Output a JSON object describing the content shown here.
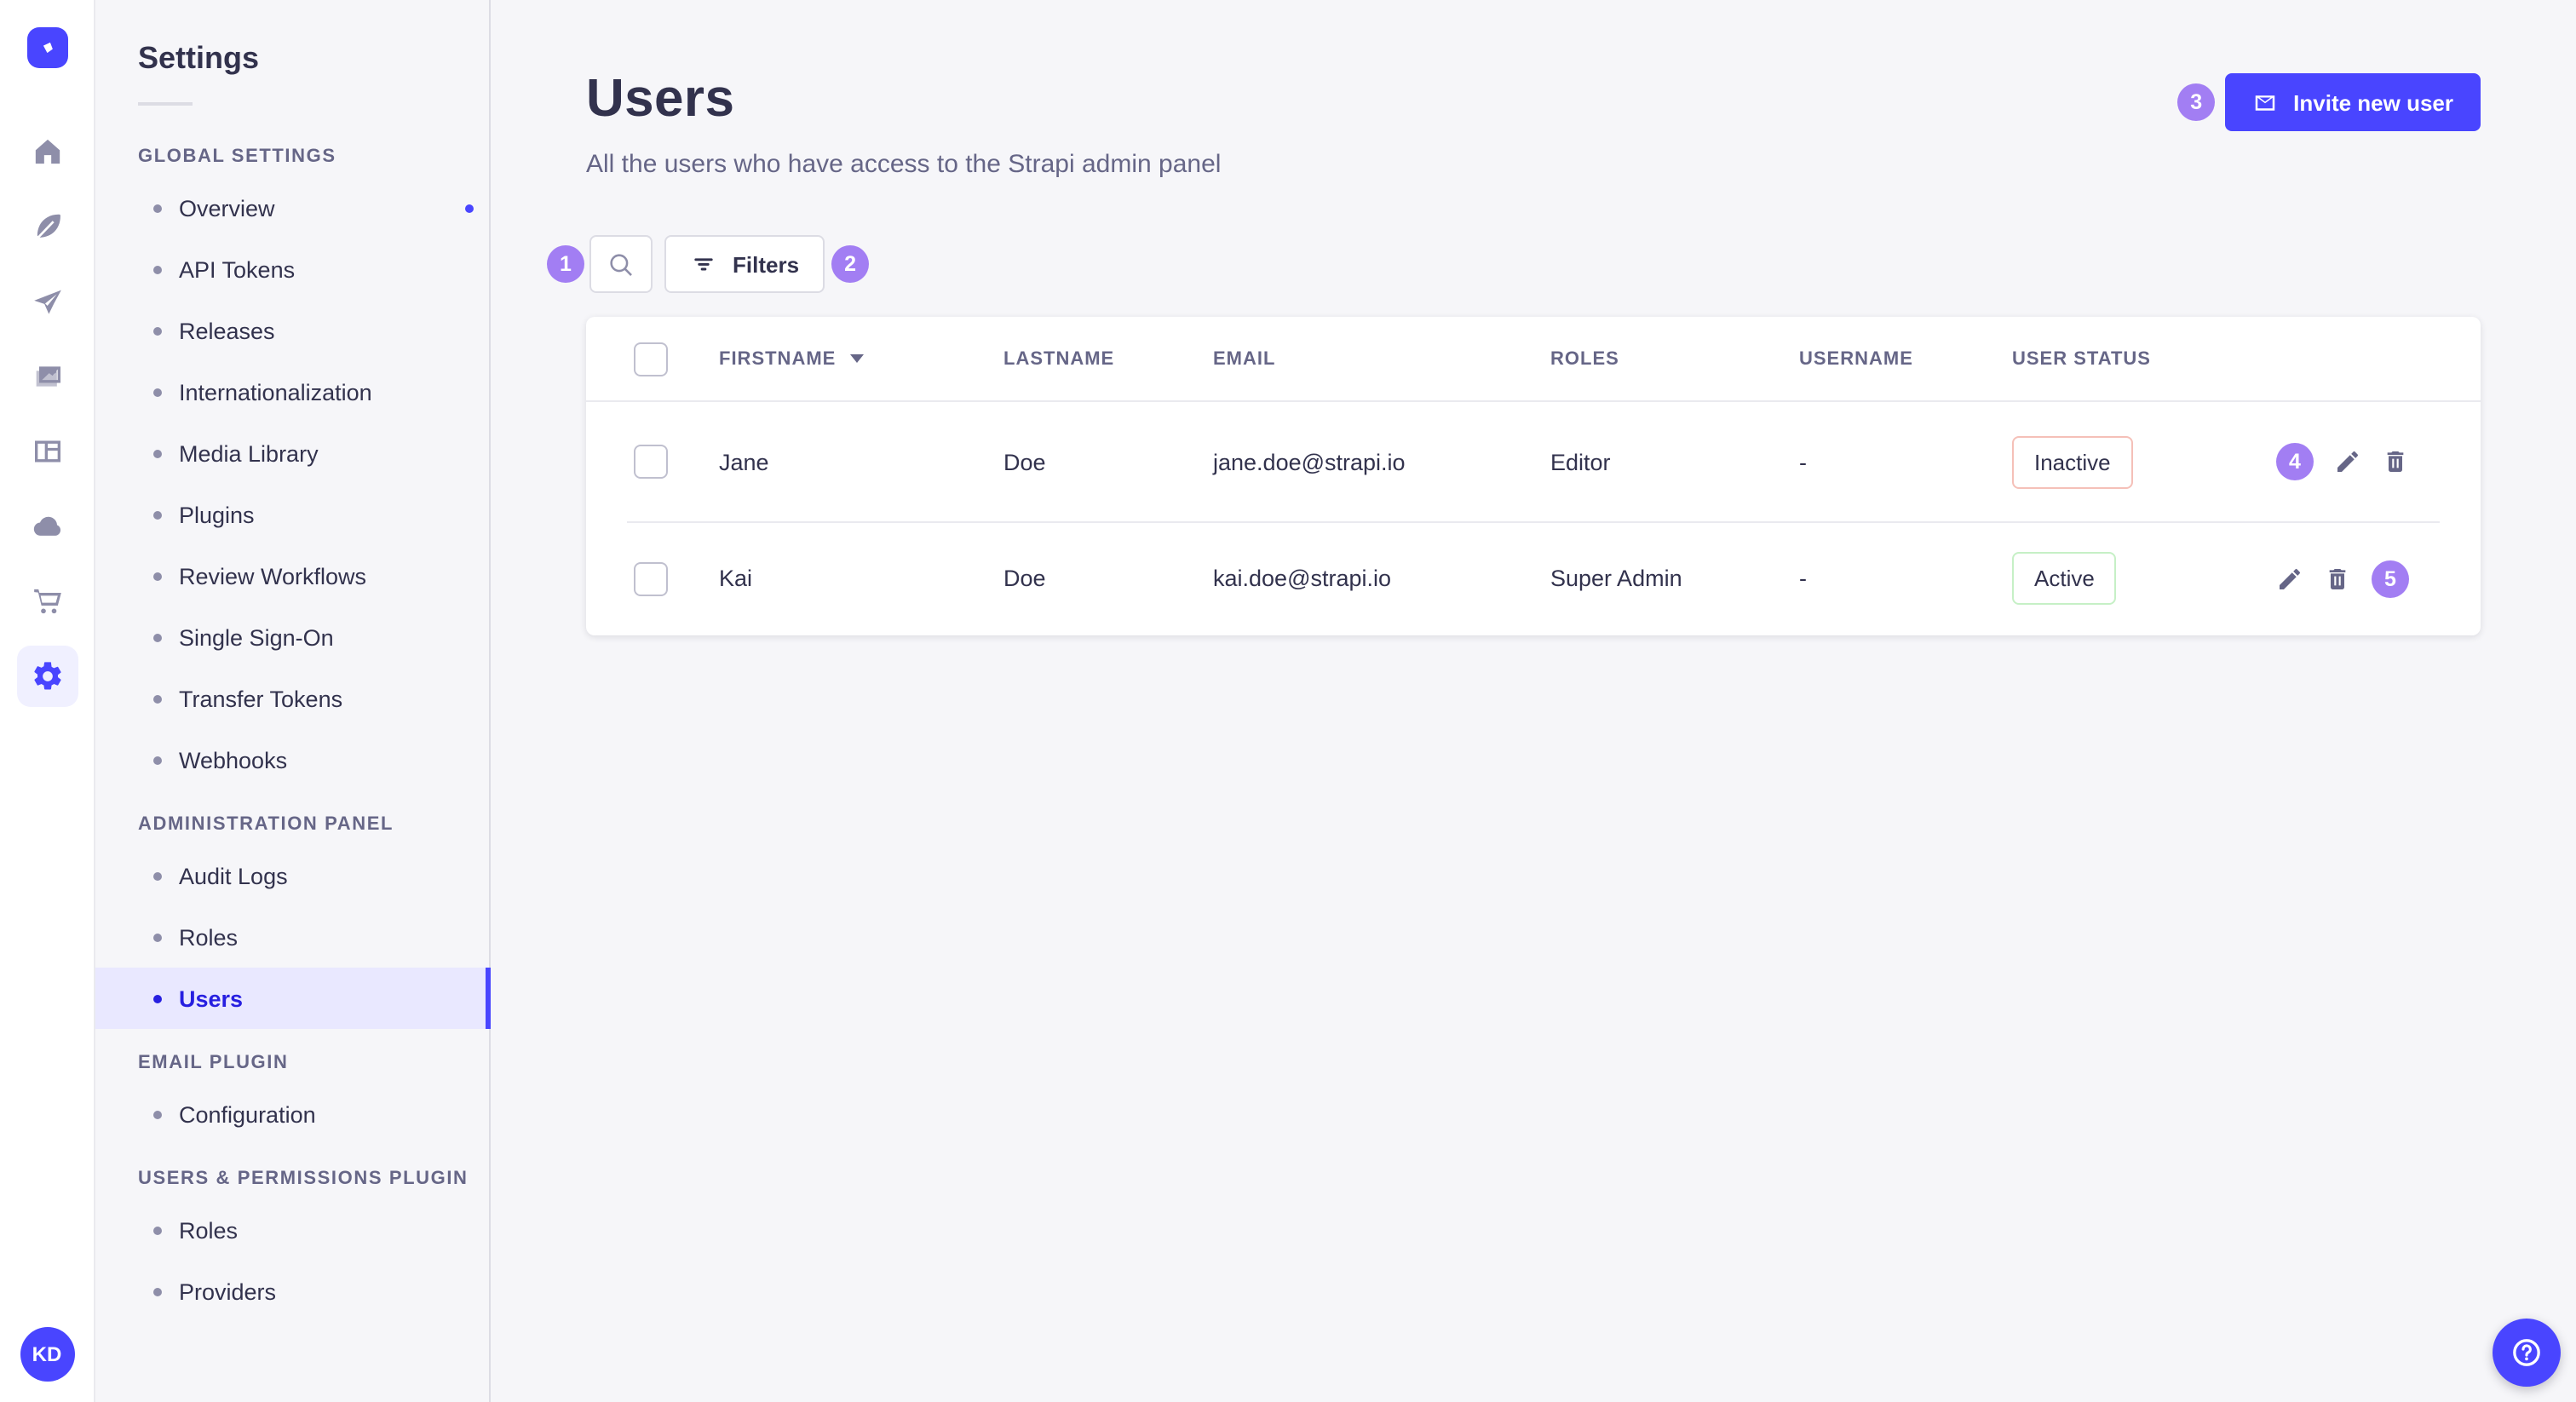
{
  "colors": {
    "primary": "#4945FF",
    "primary_dark": "#271FE0",
    "annotation_badge": "#A27EF3",
    "inactive_border": "#F5C0B8",
    "active_border": "#C6F0C6",
    "text_dark": "#32324D",
    "text_muted": "#666687"
  },
  "rail": {
    "items": [
      {
        "name": "home",
        "active": false
      },
      {
        "name": "content-type-builder",
        "active": false
      },
      {
        "name": "deploy",
        "active": false
      },
      {
        "name": "media-library",
        "active": false
      },
      {
        "name": "content-manager",
        "active": false
      },
      {
        "name": "cloud",
        "active": false
      },
      {
        "name": "marketplace",
        "active": false
      },
      {
        "name": "settings",
        "active": true
      }
    ]
  },
  "sidebar": {
    "title": "Settings",
    "sections": [
      {
        "label": "GLOBAL SETTINGS",
        "items": [
          {
            "label": "Overview",
            "notification": true
          },
          {
            "label": "API Tokens"
          },
          {
            "label": "Releases"
          },
          {
            "label": "Internationalization"
          },
          {
            "label": "Media Library"
          },
          {
            "label": "Plugins"
          },
          {
            "label": "Review Workflows"
          },
          {
            "label": "Single Sign-On"
          },
          {
            "label": "Transfer Tokens"
          },
          {
            "label": "Webhooks"
          }
        ]
      },
      {
        "label": "ADMINISTRATION PANEL",
        "items": [
          {
            "label": "Audit Logs"
          },
          {
            "label": "Roles"
          },
          {
            "label": "Users",
            "active": true
          }
        ]
      },
      {
        "label": "EMAIL PLUGIN",
        "items": [
          {
            "label": "Configuration"
          }
        ]
      },
      {
        "label": "USERS & PERMISSIONS PLUGIN",
        "items": [
          {
            "label": "Roles"
          },
          {
            "label": "Providers"
          }
        ]
      }
    ]
  },
  "header": {
    "title": "Users",
    "subtitle": "All the users who have access to the Strapi admin panel",
    "invite_label": "Invite new user"
  },
  "toolbar": {
    "filters_label": "Filters"
  },
  "annotations": {
    "search": "1",
    "filters": "2",
    "invite": "3",
    "row1": "4",
    "row2": "5"
  },
  "table": {
    "columns": [
      {
        "label": "FIRSTNAME",
        "sortable": true
      },
      {
        "label": "LASTNAME"
      },
      {
        "label": "EMAIL"
      },
      {
        "label": "ROLES"
      },
      {
        "label": "USERNAME"
      },
      {
        "label": "USER STATUS"
      }
    ],
    "rows": [
      {
        "firstname": "Jane",
        "lastname": "Doe",
        "email": "jane.doe@strapi.io",
        "roles": "Editor",
        "username": "-",
        "status": "Inactive",
        "status_type": "inactive",
        "annotation": "4",
        "annotation_position": "before"
      },
      {
        "firstname": "Kai",
        "lastname": "Doe",
        "email": "kai.doe@strapi.io",
        "roles": "Super Admin",
        "username": "-",
        "status": "Active",
        "status_type": "active",
        "annotation": "5",
        "annotation_position": "after"
      }
    ]
  },
  "footer": {
    "avatar_initials": "KD"
  }
}
